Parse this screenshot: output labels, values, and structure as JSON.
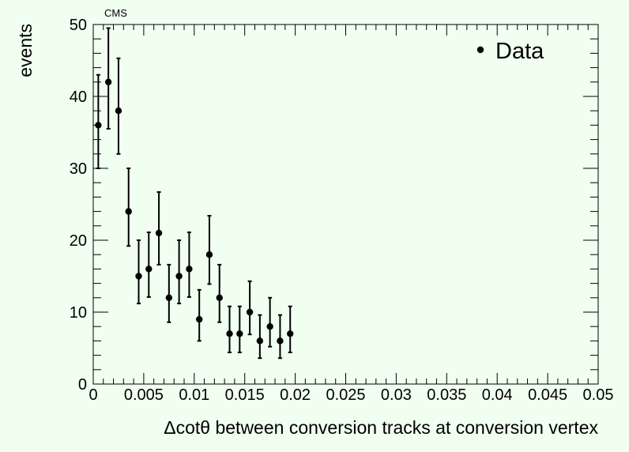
{
  "chart_data": {
    "type": "scatter",
    "title": "CMS",
    "xlabel": "Δcotθ between conversion tracks at conversion vertex",
    "ylabel": "events",
    "xlim": [
      0,
      0.05
    ],
    "ylim": [
      0,
      50
    ],
    "x_ticks": [
      0,
      0.005,
      0.01,
      0.015,
      0.02,
      0.025,
      0.03,
      0.035,
      0.04,
      0.045,
      0.05
    ],
    "x_tick_labels": [
      "0",
      "0.005",
      "0.01",
      "0.015",
      "0.02",
      "0.025",
      "0.03",
      "0.035",
      "0.04",
      "0.045",
      "0.05"
    ],
    "y_ticks": [
      0,
      10,
      20,
      30,
      40,
      50
    ],
    "y_tick_labels": [
      "0",
      "10",
      "20",
      "30",
      "40",
      "50"
    ],
    "grid": false,
    "legend_position": "top-right",
    "colors": {
      "background": "#f0fff0",
      "marker": "#000000"
    },
    "series": [
      {
        "name": "Data",
        "marker": "circle",
        "points": [
          {
            "x": 0.0005,
            "y": 36,
            "ylo": 30,
            "yhi": 43
          },
          {
            "x": 0.0015,
            "y": 42,
            "ylo": 35.5,
            "yhi": 49.5
          },
          {
            "x": 0.0025,
            "y": 38,
            "ylo": 32,
            "yhi": 45.3
          },
          {
            "x": 0.0035,
            "y": 24,
            "ylo": 19.2,
            "yhi": 30
          },
          {
            "x": 0.0045,
            "y": 15,
            "ylo": 11.2,
            "yhi": 20
          },
          {
            "x": 0.0055,
            "y": 16,
            "ylo": 12.1,
            "yhi": 21.1
          },
          {
            "x": 0.0065,
            "y": 21,
            "ylo": 16.6,
            "yhi": 26.7
          },
          {
            "x": 0.0075,
            "y": 12,
            "ylo": 8.6,
            "yhi": 16.6
          },
          {
            "x": 0.0085,
            "y": 15,
            "ylo": 11.2,
            "yhi": 20
          },
          {
            "x": 0.0095,
            "y": 16,
            "ylo": 12.1,
            "yhi": 21.1
          },
          {
            "x": 0.0105,
            "y": 9,
            "ylo": 6,
            "yhi": 13.1
          },
          {
            "x": 0.0115,
            "y": 18,
            "ylo": 13.9,
            "yhi": 23.4
          },
          {
            "x": 0.0125,
            "y": 12,
            "ylo": 8.6,
            "yhi": 16.6
          },
          {
            "x": 0.0135,
            "y": 7,
            "ylo": 4.4,
            "yhi": 10.8
          },
          {
            "x": 0.0145,
            "y": 7,
            "ylo": 4.4,
            "yhi": 10.8
          },
          {
            "x": 0.0155,
            "y": 10,
            "ylo": 6.9,
            "yhi": 14.3
          },
          {
            "x": 0.0165,
            "y": 6,
            "ylo": 3.6,
            "yhi": 9.6
          },
          {
            "x": 0.0175,
            "y": 8,
            "ylo": 5.2,
            "yhi": 12
          },
          {
            "x": 0.0185,
            "y": 6,
            "ylo": 3.6,
            "yhi": 9.6
          },
          {
            "x": 0.0195,
            "y": 7,
            "ylo": 4.4,
            "yhi": 10.8
          }
        ]
      }
    ]
  }
}
